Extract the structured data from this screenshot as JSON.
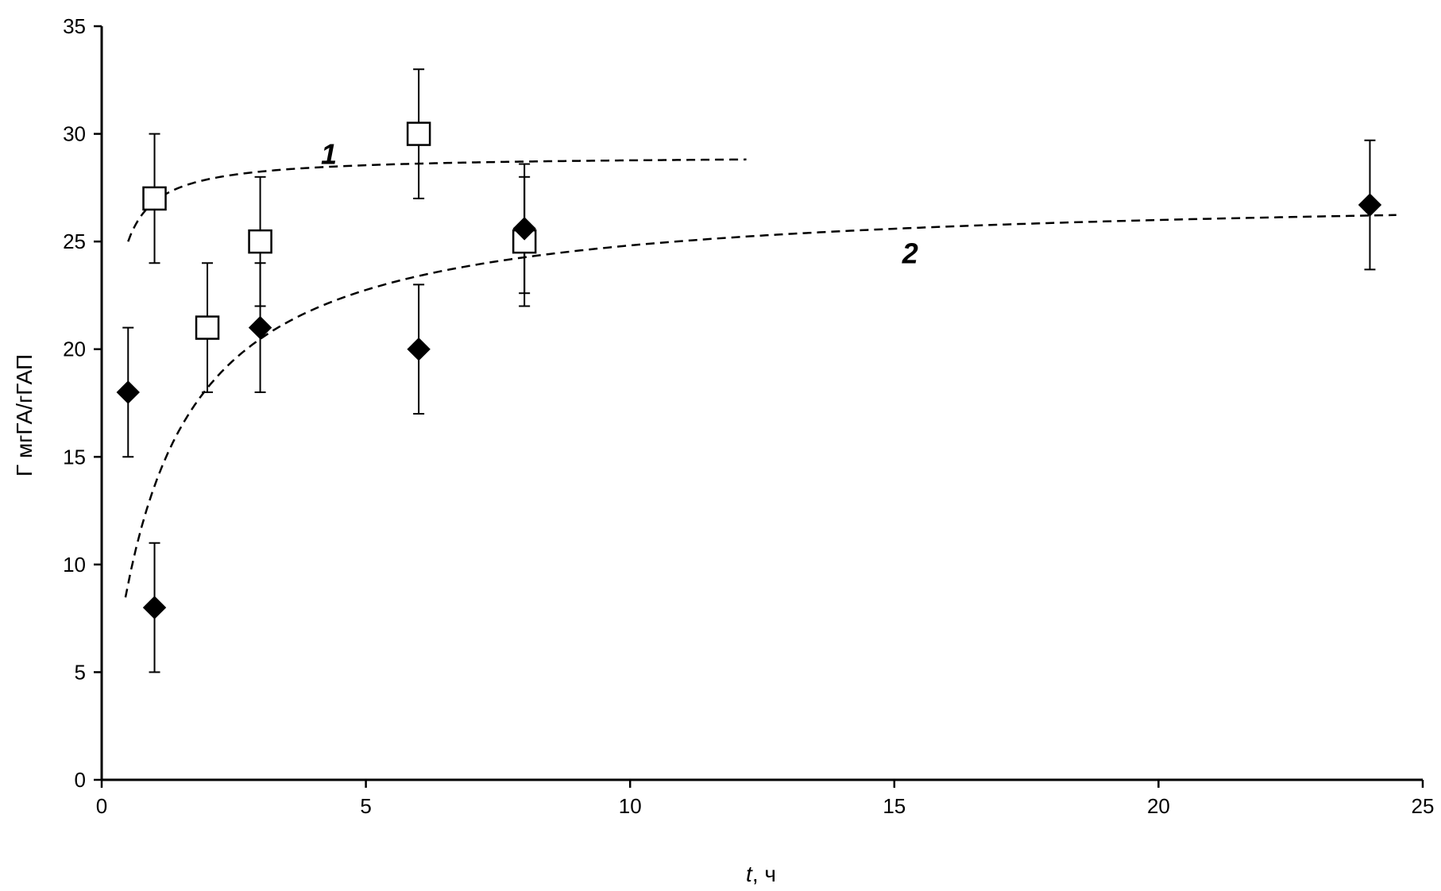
{
  "chart_data": {
    "type": "scatter",
    "title": "",
    "xlabel_var": "t",
    "xlabel_unit": ", ч",
    "ylabel": "Г мгГА/гГАП",
    "xlim": [
      0,
      25
    ],
    "ylim": [
      0,
      35
    ],
    "x_ticks": [
      "0",
      "5",
      "10",
      "15",
      "20",
      "25"
    ],
    "y_ticks": [
      "0",
      "5",
      "10",
      "15",
      "20",
      "25",
      "30",
      "35"
    ],
    "grid": false,
    "series": [
      {
        "marker": "open-square",
        "points": [
          {
            "x": 1,
            "y": 27,
            "err": 3
          },
          {
            "x": 2,
            "y": 21,
            "err": 3
          },
          {
            "x": 3,
            "y": 25,
            "err": 3
          },
          {
            "x": 6,
            "y": 30,
            "err": 3
          },
          {
            "x": 8,
            "y": 25,
            "err": 3
          }
        ]
      },
      {
        "marker": "filled-diamond",
        "points": [
          {
            "x": 0.5,
            "y": 18,
            "err": 3
          },
          {
            "x": 1,
            "y": 8,
            "err": 3
          },
          {
            "x": 3,
            "y": 21,
            "err": 3
          },
          {
            "x": 6,
            "y": 20,
            "err": 3
          },
          {
            "x": 8,
            "y": 25.6,
            "err": 3
          },
          {
            "x": 24,
            "y": 26.7,
            "err": 3
          }
        ]
      }
    ],
    "fit_curves": [
      {
        "label": "1",
        "label_x": 4.3,
        "label_y": 28.6,
        "qmax": 29,
        "k": 0.08,
        "x_start": 0.5,
        "x_end": 12.2
      },
      {
        "label": "2",
        "label_x": 15.3,
        "label_y": 24.0,
        "qmax": 27.3,
        "k": 1.0,
        "x_start": 0.45,
        "x_end": 24.5
      }
    ]
  }
}
